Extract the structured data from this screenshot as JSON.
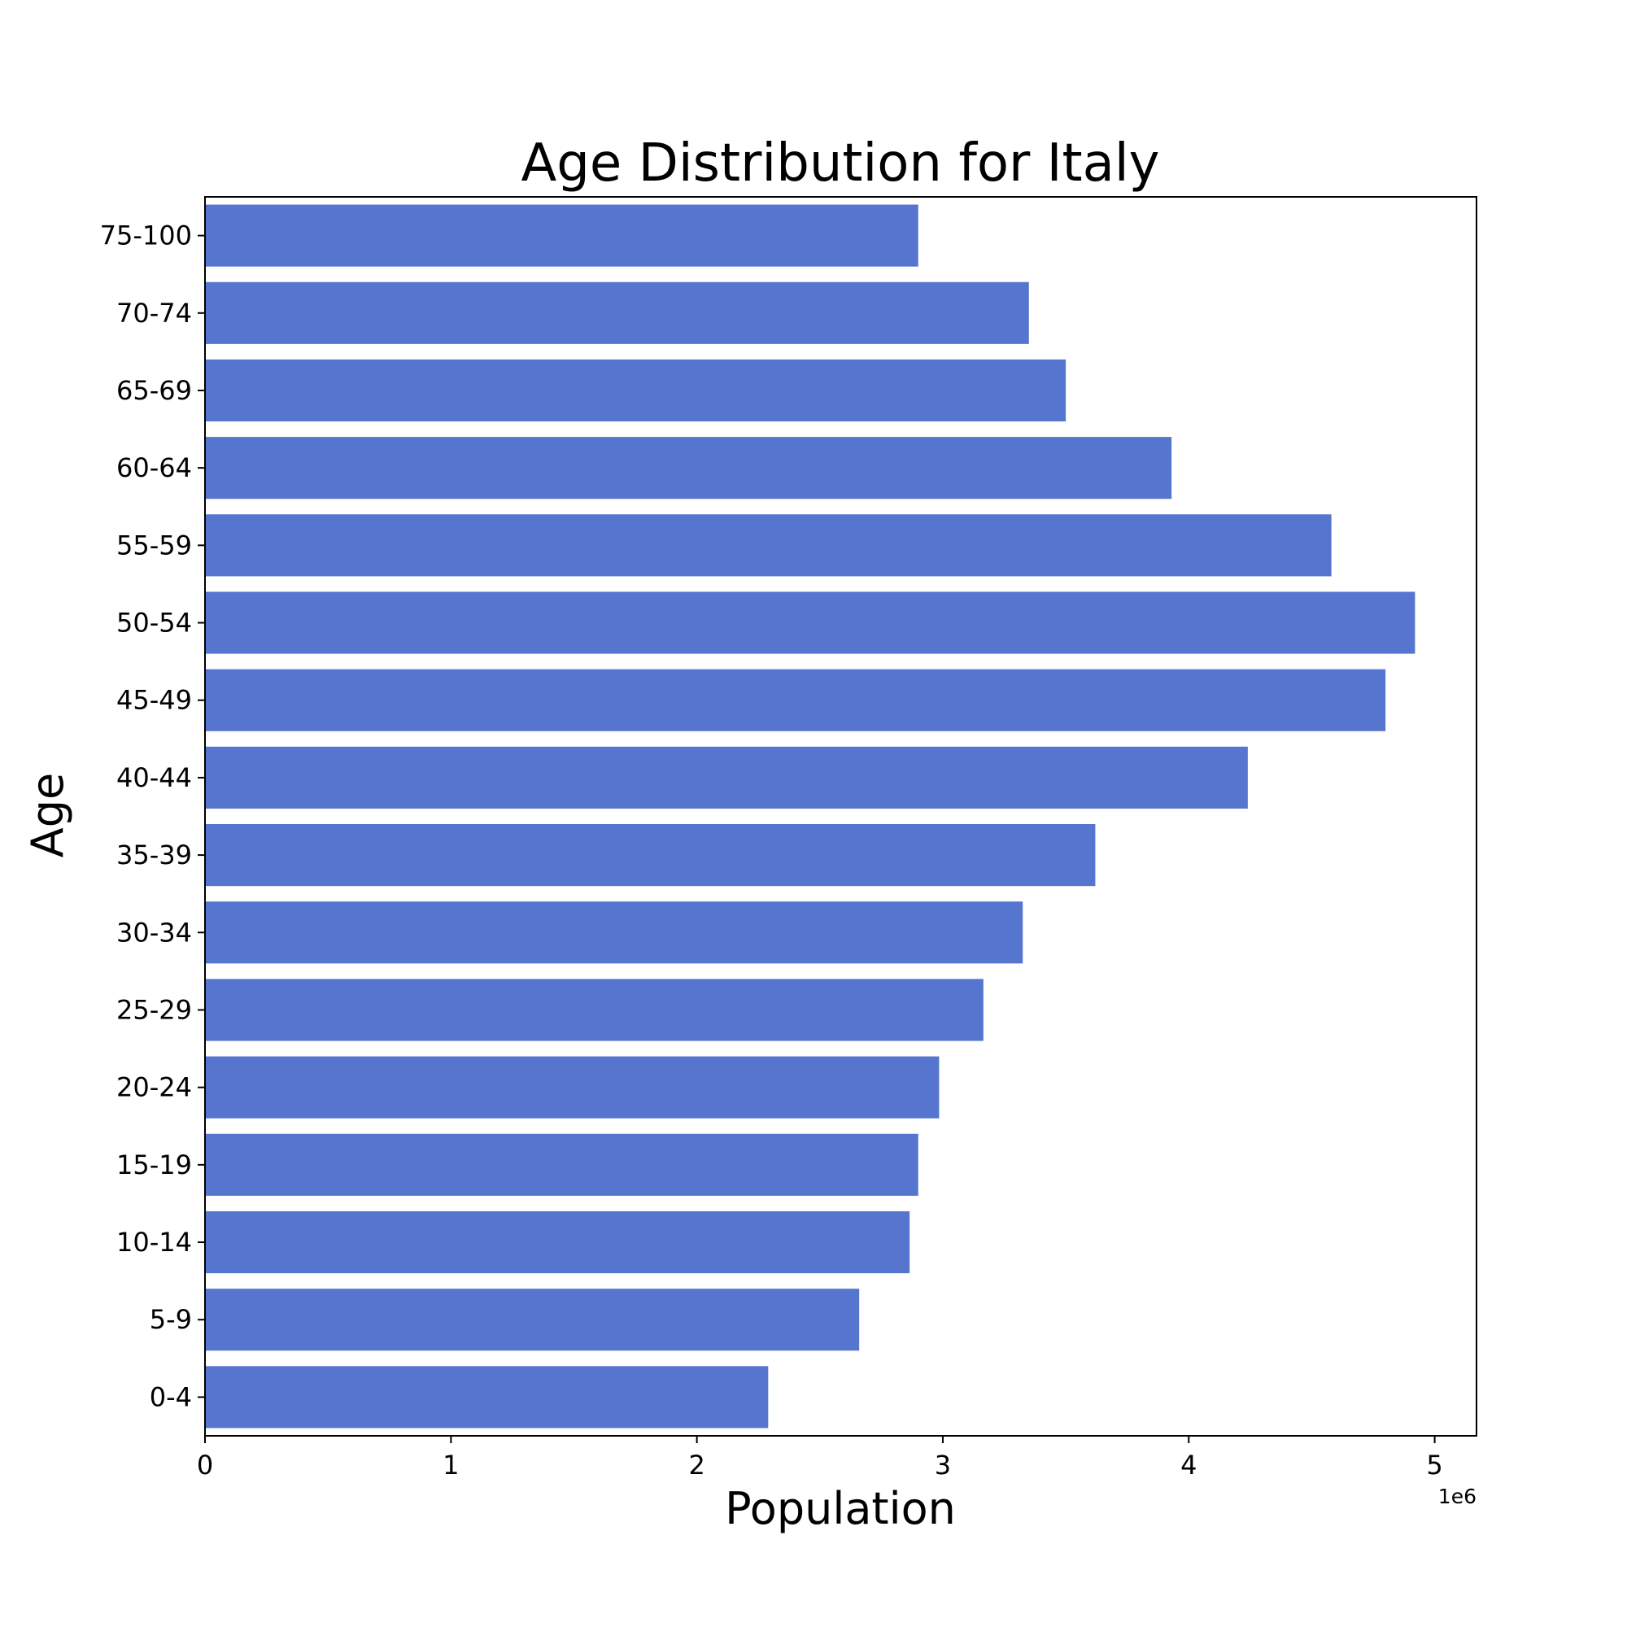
{
  "chart_data": {
    "type": "bar",
    "orientation": "horizontal",
    "title": "Age Distribution for Italy",
    "xlabel": "Population",
    "ylabel": "Age",
    "x_offset_label": "1e6",
    "categories": [
      "0-4",
      "5-9",
      "10-14",
      "15-19",
      "20-24",
      "25-29",
      "30-34",
      "35-39",
      "40-44",
      "45-49",
      "50-54",
      "55-59",
      "60-64",
      "65-69",
      "70-74",
      "75-100"
    ],
    "values": [
      2290000,
      2660000,
      2865000,
      2900000,
      2985000,
      3165000,
      3325000,
      3620000,
      4240000,
      4800000,
      4920000,
      4580000,
      3930000,
      3500000,
      3350000,
      2900000
    ],
    "xticks": [
      0,
      1,
      2,
      3,
      4,
      5
    ],
    "x_tick_scale": 1000000,
    "xlim": [
      0,
      5170000
    ],
    "bar_color": "#5675ce",
    "grid": false
  }
}
